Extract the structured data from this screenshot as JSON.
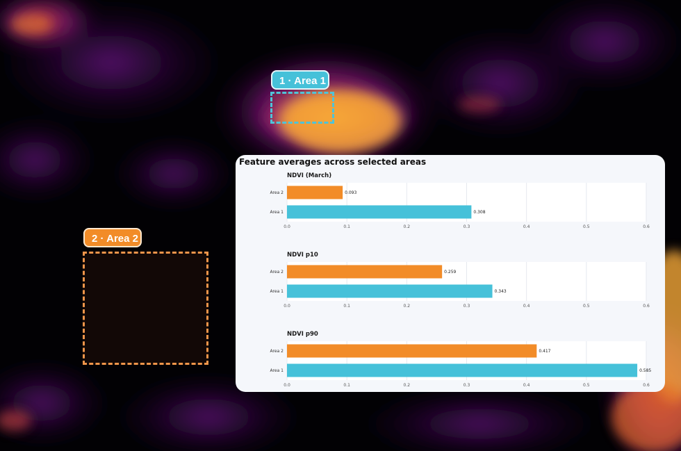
{
  "panel": {
    "title": "Feature averages across selected areas"
  },
  "areas": [
    {
      "label": "1 · Area 1",
      "color": "#46c1d9"
    },
    {
      "label": "2 · Area 2",
      "color": "#f28c28"
    }
  ],
  "colors": {
    "area1": "#46c1d9",
    "area2": "#f28c28",
    "plot_bg": "#ffffff",
    "panel_bg": "#f5f7fb",
    "grid": "#e6e9ef"
  },
  "chart_data": [
    {
      "type": "bar",
      "orientation": "horizontal",
      "title": "NDVI (March)",
      "categories": [
        "Area 2",
        "Area 1"
      ],
      "values": [
        0.093,
        0.308
      ],
      "value_labels": [
        "0.093",
        "0.308"
      ],
      "xlim": [
        0,
        0.6
      ],
      "xticks": [
        "0.0",
        "0.1",
        "0.2",
        "0.3",
        "0.4",
        "0.5",
        "0.6"
      ],
      "grid": true
    },
    {
      "type": "bar",
      "orientation": "horizontal",
      "title": "NDVI p10",
      "categories": [
        "Area 2",
        "Area 1"
      ],
      "values": [
        0.259,
        0.343
      ],
      "value_labels": [
        "0.259",
        "0.343"
      ],
      "xlim": [
        0,
        0.6
      ],
      "xticks": [
        "0.0",
        "0.1",
        "0.2",
        "0.3",
        "0.4",
        "0.5",
        "0.6"
      ],
      "grid": true
    },
    {
      "type": "bar",
      "orientation": "horizontal",
      "title": "NDVI p90",
      "categories": [
        "Area 2",
        "Area 1"
      ],
      "values": [
        0.417,
        0.585
      ],
      "value_labels": [
        "0.417",
        "0.585"
      ],
      "xlim": [
        0,
        0.6
      ],
      "xticks": [
        "0.0",
        "0.1",
        "0.2",
        "0.3",
        "0.4",
        "0.5",
        "0.6"
      ],
      "grid": true
    }
  ]
}
